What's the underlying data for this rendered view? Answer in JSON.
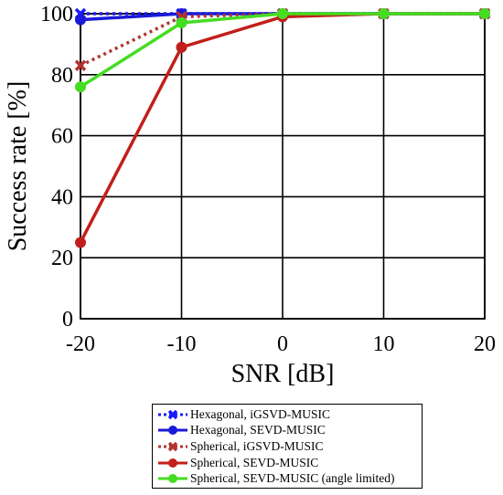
{
  "chart_data": {
    "type": "line",
    "xlabel": "SNR [dB]",
    "ylabel": "Success rate [%]",
    "xlim": [
      -20,
      20
    ],
    "ylim": [
      0,
      100
    ],
    "x_ticks": [
      -20,
      -10,
      0,
      10,
      20
    ],
    "y_ticks": [
      0,
      20,
      40,
      60,
      80,
      100
    ],
    "grid": true,
    "legend_position": "bottom-outside",
    "x": [
      -20,
      -10,
      0,
      10,
      20
    ],
    "series": [
      {
        "name": "Hexagonal, iGSVD-MUSIC",
        "values": [
          100,
          100,
          100,
          100,
          100
        ],
        "color": "#1a1aff",
        "style": "dotted",
        "marker": "x"
      },
      {
        "name": "Hexagonal, SEVD-MUSIC",
        "values": [
          98,
          100,
          100,
          100,
          100
        ],
        "color": "#1a1ad9",
        "style": "solid",
        "marker": "circle"
      },
      {
        "name": "Spherical, iGSVD-MUSIC",
        "values": [
          83,
          99,
          100,
          100,
          100
        ],
        "color": "#b3332e",
        "style": "dotted",
        "marker": "x"
      },
      {
        "name": "Spherical, SEVD-MUSIC",
        "values": [
          25,
          89,
          99,
          100,
          100
        ],
        "color": "#c21f1a",
        "style": "solid",
        "marker": "circle"
      },
      {
        "name": "Spherical, SEVD-MUSIC (angle limited)",
        "values": [
          76,
          97,
          100,
          100,
          100
        ],
        "color": "#44dd22",
        "style": "solid",
        "marker": "circle"
      }
    ]
  }
}
